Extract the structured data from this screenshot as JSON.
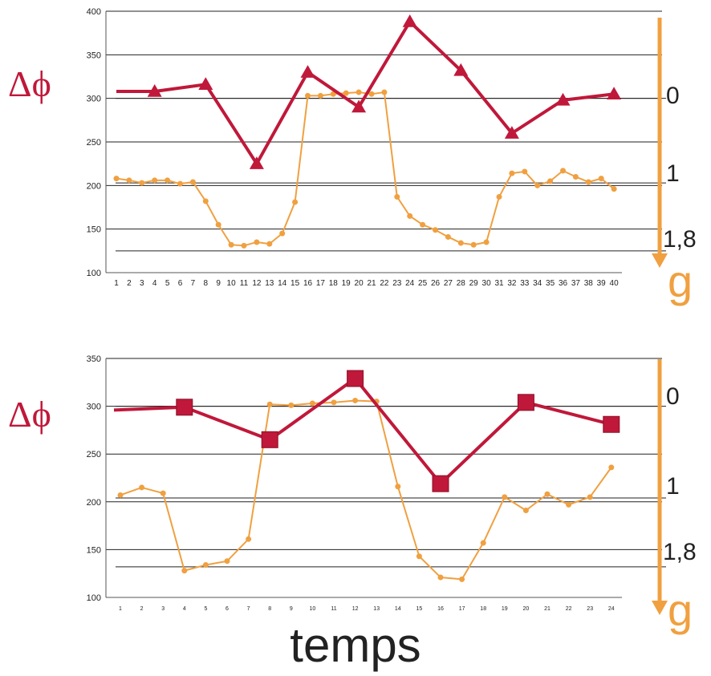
{
  "x_axis_title": "temps",
  "right_axis_symbol": "g",
  "left_axis_symbol": "Δϕ",
  "colors": {
    "red": "#c0183a",
    "orange": "#f0a040",
    "grid": "#222222"
  },
  "chart_data": [
    {
      "type": "line",
      "ylim": [
        100,
        400
      ],
      "yticks": [
        100,
        150,
        200,
        250,
        300,
        350,
        400
      ],
      "categories": [
        "1",
        "2",
        "3",
        "4",
        "5",
        "6",
        "7",
        "8",
        "9",
        "10",
        "11",
        "12",
        "13",
        "14",
        "15",
        "16",
        "17",
        "18",
        "19",
        "20",
        "21",
        "22",
        "23",
        "24",
        "25",
        "26",
        "27",
        "28",
        "29",
        "30",
        "31",
        "32",
        "33",
        "34",
        "35",
        "36",
        "37",
        "38",
        "39",
        "40"
      ],
      "right_scale_labels": [
        "0",
        "1",
        "1,8"
      ],
      "right_scale_values": [
        300,
        203,
        125
      ],
      "series": [
        {
          "marker": "triangle",
          "color": "#c0183a",
          "points": [
            [
              1,
              308
            ],
            [
              4,
              308
            ],
            [
              8,
              316
            ],
            [
              12,
              225
            ],
            [
              16,
              330
            ],
            [
              20,
              290
            ],
            [
              24,
              388
            ],
            [
              28,
              332
            ],
            [
              32,
              260
            ],
            [
              36,
              298
            ],
            [
              40,
              305
            ]
          ]
        },
        {
          "marker": "dot",
          "color": "#f0a040",
          "points": [
            [
              1,
              208
            ],
            [
              2,
              206
            ],
            [
              3,
              203
            ],
            [
              4,
              206
            ],
            [
              5,
              206
            ],
            [
              6,
              202
            ],
            [
              7,
              204
            ],
            [
              8,
              182
            ],
            [
              9,
              155
            ],
            [
              10,
              132
            ],
            [
              11,
              131
            ],
            [
              12,
              135
            ],
            [
              13,
              133
            ],
            [
              14,
              145
            ],
            [
              15,
              181
            ],
            [
              16,
              303
            ],
            [
              17,
              303
            ],
            [
              18,
              305
            ],
            [
              19,
              306
            ],
            [
              20,
              307
            ],
            [
              21,
              305
            ],
            [
              22,
              307
            ],
            [
              23,
              187
            ],
            [
              24,
              165
            ],
            [
              25,
              155
            ],
            [
              26,
              149
            ],
            [
              27,
              141
            ],
            [
              28,
              134
            ],
            [
              29,
              132
            ],
            [
              30,
              135
            ],
            [
              31,
              187
            ],
            [
              32,
              214
            ],
            [
              33,
              216
            ],
            [
              34,
              200
            ],
            [
              35,
              205
            ],
            [
              36,
              217
            ],
            [
              37,
              210
            ],
            [
              38,
              204
            ],
            [
              39,
              208
            ],
            [
              40,
              196
            ]
          ]
        }
      ]
    },
    {
      "type": "line",
      "ylim": [
        100,
        350
      ],
      "yticks": [
        100,
        150,
        200,
        250,
        300,
        350
      ],
      "categories": [
        "1",
        "2",
        "3",
        "4",
        "5",
        "6",
        "7",
        "8",
        "9",
        "10",
        "11",
        "12",
        "13",
        "14",
        "15",
        "16",
        "17",
        "18",
        "19",
        "20",
        "21",
        "22",
        "23",
        "24"
      ],
      "right_scale_labels": [
        "0",
        "1",
        "1,8"
      ],
      "right_scale_values": [
        300,
        204,
        132
      ],
      "series": [
        {
          "marker": "square",
          "color": "#c0183a",
          "points": [
            [
              0,
              296
            ],
            [
              4,
              299
            ],
            [
              8,
              265
            ],
            [
              12,
              329
            ],
            [
              16,
              219
            ],
            [
              20,
              304
            ],
            [
              24,
              281
            ]
          ]
        },
        {
          "marker": "dot",
          "color": "#f0a040",
          "points": [
            [
              1,
              207
            ],
            [
              2,
              215
            ],
            [
              3,
              209
            ],
            [
              4,
              128
            ],
            [
              5,
              134
            ],
            [
              6,
              138
            ],
            [
              7,
              161
            ],
            [
              8,
              302
            ],
            [
              9,
              301
            ],
            [
              10,
              303
            ],
            [
              11,
              304
            ],
            [
              12,
              306
            ],
            [
              13,
              305
            ],
            [
              14,
              216
            ],
            [
              15,
              143
            ],
            [
              16,
              121
            ],
            [
              17,
              119
            ],
            [
              18,
              157
            ],
            [
              19,
              205
            ],
            [
              20,
              191
            ],
            [
              21,
              208
            ],
            [
              22,
              197
            ],
            [
              23,
              205
            ],
            [
              24,
              236
            ]
          ]
        }
      ]
    }
  ]
}
